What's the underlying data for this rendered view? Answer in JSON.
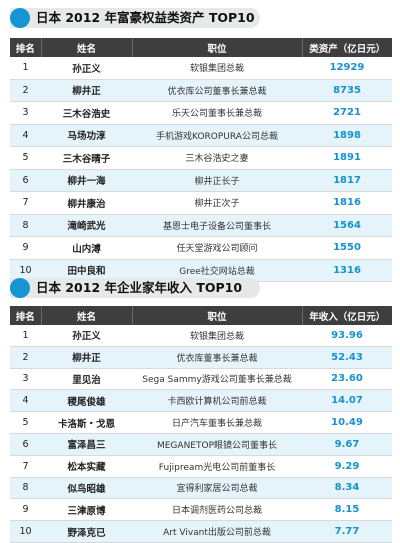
{
  "table1": {
    "title": "日本 2012 年富豪权益类资产 TOP10",
    "headers": [
      "排名",
      "姓名",
      "职位",
      "类资产（亿日元）"
    ],
    "rows": [
      {
        "rank": "1",
        "name": "孙正义",
        "position": "软银集团总裁",
        "value": "12929"
      },
      {
        "rank": "2",
        "name": "柳井正",
        "position": "优衣库公司董事长兼总裁",
        "value": "8735"
      },
      {
        "rank": "3",
        "name": "三木谷浩史",
        "position": "乐天公司董事长兼总裁",
        "value": "2721"
      },
      {
        "rank": "4",
        "name": "马场功淳",
        "position": "手机游戏KOROPURA公司总裁",
        "value": "1898"
      },
      {
        "rank": "5",
        "name": "三木谷晴子",
        "position": "三木谷浩史之妻",
        "value": "1891"
      },
      {
        "rank": "6",
        "name": "柳井一海",
        "position": "柳井正长子",
        "value": "1817"
      },
      {
        "rank": "7",
        "name": "柳井康治",
        "position": "柳井正次子",
        "value": "1816"
      },
      {
        "rank": "8",
        "name": "滝崎武光",
        "position": "基恩士电子设备公司董事长",
        "value": "1564"
      },
      {
        "rank": "9",
        "name": "山内溥",
        "position": "任天堂游戏公司顾问",
        "value": "1550"
      },
      {
        "rank": "10",
        "name": "田中良和",
        "position": "Gree社交网站总裁",
        "value": "1316"
      }
    ]
  },
  "table2": {
    "title": "日本 2012 年企业家年收入 TOP10",
    "headers": [
      "排名",
      "姓名",
      "职位",
      "年收入（亿日元）"
    ],
    "rows": [
      {
        "rank": "1",
        "name": "孙正义",
        "position": "软银集团总裁",
        "value": "93.96"
      },
      {
        "rank": "2",
        "name": "柳井正",
        "position": "优衣库董事长兼总裁",
        "value": "52.43"
      },
      {
        "rank": "3",
        "name": "里见治",
        "position": "Sega Sammy游戏公司董事长兼总裁",
        "value": "23.60"
      },
      {
        "rank": "4",
        "name": "稷尾俊雄",
        "position": "卡西欧计算机公司前总裁",
        "value": "14.07"
      },
      {
        "rank": "5",
        "name": "卡洛斯・戈恩",
        "position": "日产汽车董事长兼总裁",
        "value": "10.49"
      },
      {
        "rank": "6",
        "name": "富泽昌三",
        "position": "MEGANETOP眼镜公司董事长",
        "value": "9.67"
      },
      {
        "rank": "7",
        "name": "松本实藏",
        "position": "Fujipream光电公司前董事长",
        "value": "9.29"
      },
      {
        "rank": "8",
        "name": "似鸟昭雄",
        "position": "宜得利家居公司总裁",
        "value": "8.34"
      },
      {
        "rank": "9",
        "name": "三津原博",
        "position": "日本调剂医药公司总裁",
        "value": "8.15"
      },
      {
        "rank": "10",
        "name": "野泽克已",
        "position": "Art Vivant出版公司前总裁",
        "value": "7.77"
      }
    ]
  }
}
